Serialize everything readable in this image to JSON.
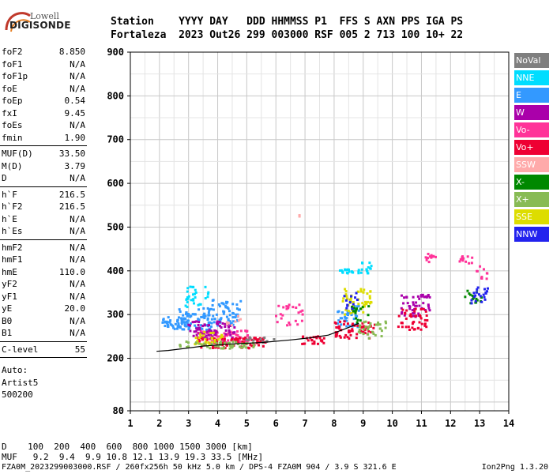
{
  "logo": {
    "top": "Lowell",
    "bottom": "DIGISONDE"
  },
  "header": {
    "line1": "Station    YYYY DAY   DDD HHMMSS P1  FFS S AXN PPS IGA PS",
    "line2": "Fortaleza  2023 Out26 299 003000 RSF 005 2 713 100 10+ 22"
  },
  "parameters": [
    {
      "name": "foF2",
      "value": "8.850"
    },
    {
      "name": "foF1",
      "value": "N/A"
    },
    {
      "name": "foF1p",
      "value": "N/A"
    },
    {
      "name": "foE",
      "value": "N/A"
    },
    {
      "name": "foEp",
      "value": "0.54"
    },
    {
      "name": "fxI",
      "value": "9.45"
    },
    {
      "name": "foEs",
      "value": "N/A"
    },
    {
      "name": "fmin",
      "value": "1.90"
    },
    {
      "name": "MUF(D)",
      "value": "33.50"
    },
    {
      "name": "M(D)",
      "value": "3.79"
    },
    {
      "name": "D",
      "value": "N/A"
    },
    {
      "name": "h`F",
      "value": "216.5"
    },
    {
      "name": "h`F2",
      "value": "216.5"
    },
    {
      "name": "h`E",
      "value": "N/A"
    },
    {
      "name": "h`Es",
      "value": "N/A"
    },
    {
      "name": "hmF2",
      "value": "N/A"
    },
    {
      "name": "hmF1",
      "value": "N/A"
    },
    {
      "name": "hmE",
      "value": "110.0"
    },
    {
      "name": "yF2",
      "value": "N/A"
    },
    {
      "name": "yF1",
      "value": "N/A"
    },
    {
      "name": "yE",
      "value": "20.0"
    },
    {
      "name": "B0",
      "value": "N/A"
    },
    {
      "name": "B1",
      "value": "N/A"
    },
    {
      "name": "C-level",
      "value": "55"
    }
  ],
  "autoscaling": [
    "Auto:",
    "Artist5",
    "500200"
  ],
  "legend": [
    {
      "label": "NoVal",
      "bg": "#7f7f7f",
      "fg": "#ffffff"
    },
    {
      "label": "NNE",
      "bg": "#00ddff",
      "fg": "#ffffff"
    },
    {
      "label": "E",
      "bg": "#3399ff",
      "fg": "#ffffff"
    },
    {
      "label": "W",
      "bg": "#aa00aa",
      "fg": "#ffffff"
    },
    {
      "label": "Vo-",
      "bg": "#ff3399",
      "fg": "#ffffff"
    },
    {
      "label": "Vo+",
      "bg": "#ee0033",
      "fg": "#ffffff"
    },
    {
      "label": "SSW",
      "bg": "#ffaaaa",
      "fg": "#ffffff"
    },
    {
      "label": "X-",
      "bg": "#008800",
      "fg": "#ffffff"
    },
    {
      "label": "X+",
      "bg": "#88bb55",
      "fg": "#ffffff"
    },
    {
      "label": "SSE",
      "bg": "#dddd00",
      "fg": "#ffffff"
    },
    {
      "label": "NNW",
      "bg": "#2222ee",
      "fg": "#ffffff"
    }
  ],
  "footer": {
    "distance_row": "D    100  200  400  600  800 1000 1500 3000 [km]",
    "muf_row": "MUF   9.2  9.4  9.9 10.8 12.1 13.9 19.3 33.5 [MHz]",
    "info": "FZA0M_2023299003000.RSF / 260fx256h 50 kHz 5.0 km / DPS-4 FZA0M 904 / 3.9 S 321.6 E",
    "version": "Ion2Png 1.3.20"
  },
  "chart_data": {
    "type": "scatter",
    "xlabel": "",
    "ylabel": "",
    "xlim": [
      1,
      14
    ],
    "ylim": [
      80,
      900
    ],
    "x_ticks": [
      1,
      2,
      3,
      4,
      5,
      6,
      7,
      8,
      9,
      10,
      11,
      12,
      13,
      14
    ],
    "y_ticks": [
      80,
      200,
      300,
      400,
      500,
      600,
      700,
      800,
      900
    ],
    "grid": true,
    "series": [
      {
        "color": "#3399ff",
        "clusters": [
          [
            3.2,
            290,
            0.6,
            25,
            80
          ],
          [
            4.3,
            305,
            0.5,
            30,
            60
          ],
          [
            8.5,
            295,
            0.4,
            25,
            40
          ],
          [
            2.5,
            280,
            0.4,
            15,
            40
          ]
        ]
      },
      {
        "color": "#00ddff",
        "clusters": [
          [
            3.3,
            340,
            0.4,
            25,
            30
          ],
          [
            8.7,
            398,
            0.5,
            6,
            25
          ],
          [
            9.1,
            410,
            0.2,
            10,
            8
          ]
        ]
      },
      {
        "color": "#ff3399",
        "clusters": [
          [
            4.2,
            250,
            0.9,
            15,
            80
          ],
          [
            6.5,
            300,
            0.5,
            25,
            25
          ],
          [
            11.3,
            430,
            0.2,
            10,
            12
          ],
          [
            12.5,
            425,
            0.3,
            8,
            12
          ],
          [
            13.1,
            400,
            0.2,
            20,
            10
          ]
        ]
      },
      {
        "color": "#aa00aa",
        "clusters": [
          [
            3.8,
            265,
            0.8,
            20,
            70
          ],
          [
            10.8,
            320,
            0.5,
            25,
            50
          ]
        ]
      },
      {
        "color": "#ee0033",
        "clusters": [
          [
            4.5,
            235,
            1.2,
            12,
            90
          ],
          [
            8.7,
            265,
            0.7,
            20,
            60
          ],
          [
            10.7,
            290,
            0.5,
            25,
            45
          ],
          [
            7.3,
            240,
            0.4,
            10,
            25
          ]
        ]
      },
      {
        "color": "#dddd00",
        "clusters": [
          [
            8.8,
            330,
            0.5,
            30,
            50
          ],
          [
            3.7,
            245,
            0.5,
            15,
            30
          ]
        ]
      },
      {
        "color": "#88bb55",
        "clusters": [
          [
            4.0,
            230,
            1.3,
            8,
            55
          ],
          [
            9.3,
            265,
            0.5,
            20,
            30
          ]
        ]
      },
      {
        "color": "#008800",
        "clusters": [
          [
            12.8,
            340,
            0.3,
            15,
            15
          ],
          [
            8.9,
            300,
            0.3,
            20,
            15
          ]
        ]
      },
      {
        "color": "#2222ee",
        "clusters": [
          [
            13.0,
            345,
            0.3,
            20,
            20
          ],
          [
            8.6,
            330,
            0.3,
            20,
            12
          ]
        ]
      },
      {
        "color": "#ffaaaa",
        "clusters": [
          [
            6.8,
            525,
            0.02,
            2,
            2
          ],
          [
            4.6,
            290,
            0.3,
            15,
            8
          ]
        ]
      },
      {
        "color": "#7f7f7f",
        "clusters": [
          [
            5.5,
            240,
            0.6,
            8,
            12
          ]
        ]
      }
    ],
    "trace": [
      [
        1.9,
        216
      ],
      [
        2.3,
        218
      ],
      [
        2.8,
        222
      ],
      [
        3.5,
        228
      ],
      [
        4.5,
        233
      ],
      [
        5.5,
        236
      ],
      [
        6.5,
        242
      ],
      [
        7.2,
        247
      ],
      [
        7.8,
        253
      ],
      [
        8.4,
        268
      ],
      [
        8.85,
        280
      ]
    ]
  }
}
